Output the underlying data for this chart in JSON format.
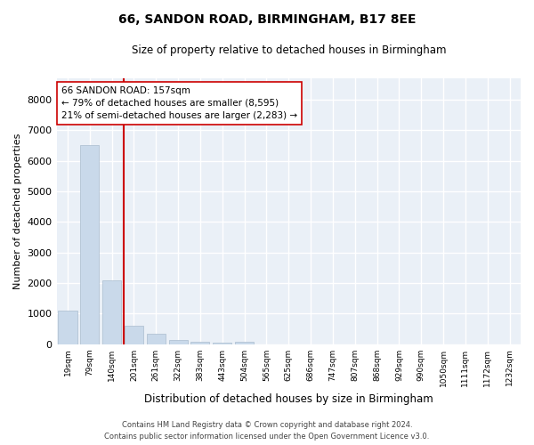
{
  "title1": "66, SANDON ROAD, BIRMINGHAM, B17 8EE",
  "title2": "Size of property relative to detached houses in Birmingham",
  "xlabel": "Distribution of detached houses by size in Birmingham",
  "ylabel": "Number of detached properties",
  "bar_color": "#c9d9ea",
  "bar_edge_color": "#aabcce",
  "background_color": "#eaf0f7",
  "grid_color": "#ffffff",
  "annotation_line_color": "#cc0000",
  "annotation_box_line1": "66 SANDON ROAD: 157sqm",
  "annotation_box_line2": "← 79% of detached houses are smaller (8,595)",
  "annotation_box_line3": "21% of semi-detached houses are larger (2,283) →",
  "footnote1": "Contains HM Land Registry data © Crown copyright and database right 2024.",
  "footnote2": "Contains public sector information licensed under the Open Government Licence v3.0.",
  "categories": [
    "19sqm",
    "79sqm",
    "140sqm",
    "201sqm",
    "261sqm",
    "322sqm",
    "383sqm",
    "443sqm",
    "504sqm",
    "565sqm",
    "625sqm",
    "686sqm",
    "747sqm",
    "807sqm",
    "868sqm",
    "929sqm",
    "990sqm",
    "1050sqm",
    "1111sqm",
    "1172sqm",
    "1232sqm"
  ],
  "values": [
    1100,
    6500,
    2100,
    600,
    350,
    150,
    90,
    60,
    90,
    0,
    0,
    0,
    0,
    0,
    0,
    0,
    0,
    0,
    0,
    0,
    0
  ],
  "red_line_x": 2.55,
  "ylim_max": 8700,
  "yticks": [
    0,
    1000,
    2000,
    3000,
    4000,
    5000,
    6000,
    7000,
    8000
  ]
}
